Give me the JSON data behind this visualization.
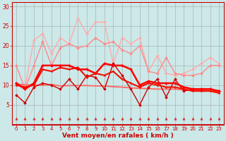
{
  "xlabel": "Vent moyen/en rafales ( km/h )",
  "xlim": [
    -0.5,
    23.5
  ],
  "ylim": [
    0,
    31
  ],
  "yticks": [
    5,
    10,
    15,
    20,
    25,
    30
  ],
  "xticks": [
    0,
    1,
    2,
    3,
    4,
    5,
    6,
    7,
    8,
    9,
    10,
    11,
    12,
    13,
    14,
    15,
    16,
    17,
    18,
    19,
    20,
    21,
    22,
    23
  ],
  "background_color": "#cce8e8",
  "grid_color": "#999999",
  "series": [
    {
      "y": [
        10.5,
        9.0,
        10.5,
        15.0,
        15.0,
        15.0,
        15.0,
        14.0,
        14.0,
        13.0,
        15.5,
        15.0,
        15.0,
        14.0,
        10.0,
        11.0,
        10.5,
        10.5,
        10.5,
        9.5,
        9.0,
        9.0,
        9.0,
        8.5
      ],
      "color": "#ff0000",
      "lw": 1.8,
      "marker": "D",
      "ms": 2.0,
      "linestyle": "-",
      "zorder": 5
    },
    {
      "y": [
        7.5,
        5.5,
        9.5,
        10.5,
        10.0,
        9.0,
        11.5,
        9.0,
        12.5,
        12.0,
        9.0,
        15.5,
        12.5,
        9.0,
        5.0,
        9.5,
        11.5,
        7.0,
        11.5,
        8.5,
        9.0,
        9.0,
        9.0,
        8.5
      ],
      "color": "#cc0000",
      "lw": 1.0,
      "marker": "D",
      "ms": 2.0,
      "linestyle": "-",
      "zorder": 4
    },
    {
      "y": [
        10.0,
        9.5,
        10.0,
        14.0,
        13.5,
        14.5,
        14.0,
        14.5,
        12.0,
        13.0,
        12.5,
        13.5,
        11.5,
        10.5,
        9.5,
        10.5,
        10.0,
        9.5,
        9.5,
        9.0,
        8.5,
        8.5,
        8.5,
        8.0
      ],
      "color": "#ee1100",
      "lw": 1.5,
      "marker": "D",
      "ms": 1.5,
      "linestyle": "-",
      "zorder": 4
    },
    {
      "y": [
        10.3,
        10.1,
        10.0,
        10.0,
        10.2,
        9.8,
        9.9,
        9.9,
        9.9,
        9.8,
        9.8,
        9.6,
        9.5,
        9.3,
        9.2,
        9.1,
        9.0,
        9.0,
        9.0,
        8.8,
        8.7,
        8.7,
        8.6,
        8.4
      ],
      "color": "#ff6666",
      "lw": 1.3,
      "marker": null,
      "ms": 0,
      "linestyle": "-",
      "zorder": 3
    },
    {
      "y": [
        10.5,
        9.5,
        21.5,
        23.0,
        18.0,
        22.0,
        20.5,
        27.0,
        23.0,
        26.0,
        26.0,
        15.5,
        22.0,
        20.5,
        22.0,
        13.5,
        17.5,
        13.0,
        12.5,
        13.0,
        14.0,
        15.5,
        17.0,
        15.5
      ],
      "color": "#ffaaaa",
      "lw": 1.0,
      "marker": "D",
      "ms": 2.0,
      "linestyle": "-",
      "zorder": 2
    },
    {
      "y": [
        15.0,
        9.0,
        15.0,
        21.0,
        15.0,
        19.5,
        20.5,
        19.5,
        20.0,
        22.0,
        20.5,
        21.0,
        19.0,
        18.0,
        20.0,
        13.5,
        13.0,
        17.0,
        13.0,
        12.5,
        12.5,
        13.0,
        15.0,
        15.0
      ],
      "color": "#ff8888",
      "lw": 1.0,
      "marker": "D",
      "ms": 2.0,
      "linestyle": "-",
      "zorder": 2
    },
    {
      "y": [
        1.5,
        1.5,
        1.5,
        1.5,
        1.5,
        1.5,
        1.5,
        1.5,
        1.5,
        1.5,
        1.5,
        1.5,
        1.5,
        1.5,
        1.5,
        1.5,
        1.5,
        1.5,
        1.5,
        1.5,
        1.5,
        1.5,
        1.5,
        1.5
      ],
      "color": "#cc3333",
      "lw": 0.5,
      "marker": "^",
      "ms": 2.5,
      "linestyle": "none",
      "zorder": 6
    }
  ]
}
